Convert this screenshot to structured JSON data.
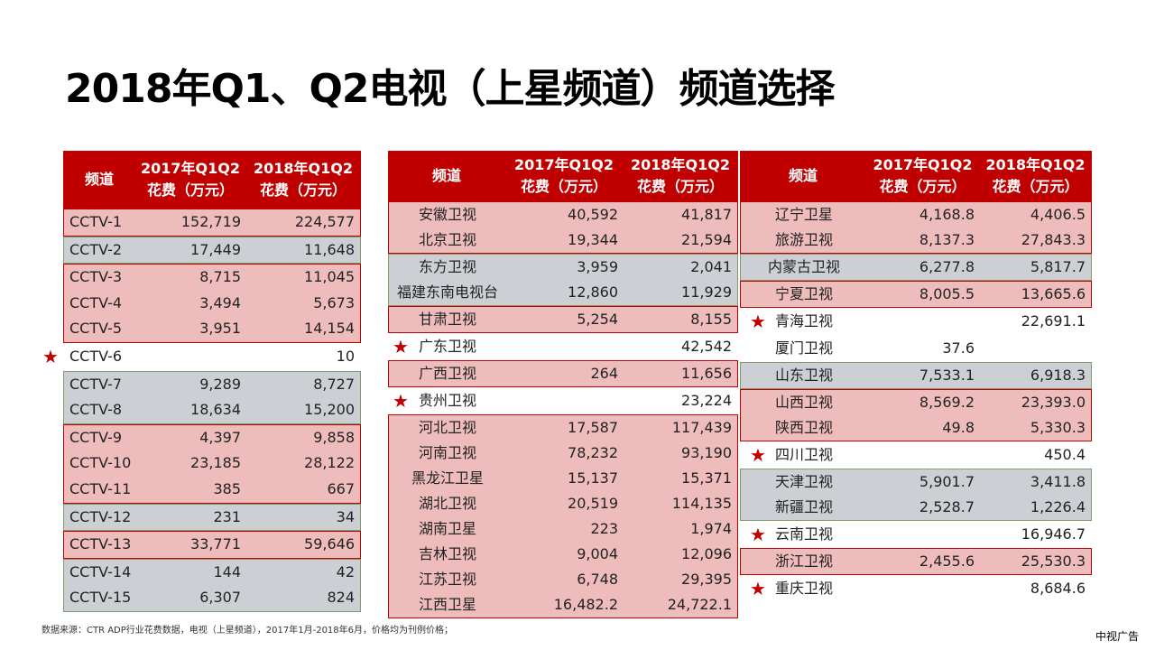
{
  "title": "2018年Q1、Q2电视（上星频道）频道选择",
  "header": {
    "channel": "频道",
    "col2017_line1": "2017年Q1Q2",
    "col2017_line2": "花费（万元）",
    "col2018_line1": "2018年Q1Q2",
    "col2018_line2": "花费（万元）"
  },
  "colors": {
    "header": "#c00000",
    "pink": "#efbcbc",
    "gray": "#ccd0d5",
    "star": "#c00000"
  },
  "tables": [
    {
      "rows": [
        {
          "name": "CCTV-1",
          "v2017": "152,719",
          "v2018": "224,577",
          "type": "red"
        },
        {
          "name": "CCTV-2",
          "v2017": "17,449",
          "v2018": "11,648",
          "type": "gray"
        },
        {
          "name": "CCTV-3",
          "v2017": "8,715",
          "v2018": "11,045",
          "type": "red"
        },
        {
          "name": "CCTV-4",
          "v2017": "3,494",
          "v2018": "5,673",
          "type": "red"
        },
        {
          "name": "CCTV-5",
          "v2017": "3,951",
          "v2018": "14,154",
          "type": "red"
        },
        {
          "name": "CCTV-6",
          "v2017": "",
          "v2018": "10",
          "type": "star"
        },
        {
          "name": "CCTV-7",
          "v2017": "9,289",
          "v2018": "8,727",
          "type": "gray"
        },
        {
          "name": "CCTV-8",
          "v2017": "18,634",
          "v2018": "15,200",
          "type": "gray"
        },
        {
          "name": "CCTV-9",
          "v2017": "4,397",
          "v2018": "9,858",
          "type": "red"
        },
        {
          "name": "CCTV-10",
          "v2017": "23,185",
          "v2018": "28,122",
          "type": "red"
        },
        {
          "name": "CCTV-11",
          "v2017": "385",
          "v2018": "667",
          "type": "red"
        },
        {
          "name": "CCTV-12",
          "v2017": "231",
          "v2018": "34",
          "type": "gray"
        },
        {
          "name": "CCTV-13",
          "v2017": "33,771",
          "v2018": "59,646",
          "type": "red"
        },
        {
          "name": "CCTV-14",
          "v2017": "144",
          "v2018": "42",
          "type": "gray"
        },
        {
          "name": "CCTV-15",
          "v2017": "6,307",
          "v2018": "824",
          "type": "gray"
        }
      ]
    },
    {
      "rows": [
        {
          "name": "安徽卫视",
          "v2017": "40,592",
          "v2018": "41,817",
          "type": "red"
        },
        {
          "name": "北京卫视",
          "v2017": "19,344",
          "v2018": "21,594",
          "type": "red"
        },
        {
          "name": "东方卫视",
          "v2017": "3,959",
          "v2018": "2,041",
          "type": "gray"
        },
        {
          "name": "福建东南电视台",
          "v2017": "12,860",
          "v2018": "11,929",
          "type": "gray"
        },
        {
          "name": "甘肃卫视",
          "v2017": "5,254",
          "v2018": "8,155",
          "type": "red"
        },
        {
          "name": "广东卫视",
          "v2017": "",
          "v2018": "42,542",
          "type": "star"
        },
        {
          "name": "广西卫视",
          "v2017": "264",
          "v2018": "11,656",
          "type": "red"
        },
        {
          "name": "贵州卫视",
          "v2017": "",
          "v2018": "23,224",
          "type": "star"
        },
        {
          "name": "河北卫视",
          "v2017": "17,587",
          "v2018": "117,439",
          "type": "red"
        },
        {
          "name": "河南卫视",
          "v2017": "78,232",
          "v2018": "93,190",
          "type": "red"
        },
        {
          "name": "黑龙江卫星",
          "v2017": "15,137",
          "v2018": "15,371",
          "type": "red"
        },
        {
          "name": "湖北卫视",
          "v2017": "20,519",
          "v2018": "114,135",
          "type": "red"
        },
        {
          "name": "湖南卫星",
          "v2017": "223",
          "v2018": "1,974",
          "type": "red"
        },
        {
          "name": "吉林卫视",
          "v2017": "9,004",
          "v2018": "12,096",
          "type": "red"
        },
        {
          "name": "江苏卫视",
          "v2017": "6,748",
          "v2018": "29,395",
          "type": "red"
        },
        {
          "name": "江西卫星",
          "v2017": "16,482.2",
          "v2018": "24,722.1",
          "type": "red"
        }
      ]
    },
    {
      "rows": [
        {
          "name": "辽宁卫星",
          "v2017": "4,168.8",
          "v2018": "4,406.5",
          "type": "red"
        },
        {
          "name": "旅游卫视",
          "v2017": "8,137.3",
          "v2018": "27,843.3",
          "type": "red"
        },
        {
          "name": "内蒙古卫视",
          "v2017": "6,277.8",
          "v2018": "5,817.7",
          "type": "gray"
        },
        {
          "name": "宁夏卫视",
          "v2017": "8,005.5",
          "v2018": "13,665.6",
          "type": "red"
        },
        {
          "name": "青海卫视",
          "v2017": "",
          "v2018": "22,691.1",
          "type": "star"
        },
        {
          "name": "厦门卫视",
          "v2017": "37.6",
          "v2018": "",
          "type": "plain"
        },
        {
          "name": "山东卫视",
          "v2017": "7,533.1",
          "v2018": "6,918.3",
          "type": "gray"
        },
        {
          "name": "山西卫视",
          "v2017": "8,569.2",
          "v2018": "23,393.0",
          "type": "red"
        },
        {
          "name": "陕西卫视",
          "v2017": "49.8",
          "v2018": "5,330.3",
          "type": "red"
        },
        {
          "name": "四川卫视",
          "v2017": "",
          "v2018": "450.4",
          "type": "star"
        },
        {
          "name": "天津卫视",
          "v2017": "5,901.7",
          "v2018": "3,411.8",
          "type": "gray"
        },
        {
          "name": "新疆卫视",
          "v2017": "2,528.7",
          "v2018": "1,226.4",
          "type": "gray"
        },
        {
          "name": "云南卫视",
          "v2017": "",
          "v2018": "16,946.7",
          "type": "star"
        },
        {
          "name": "浙江卫视",
          "v2017": "2,455.6",
          "v2018": "25,530.3",
          "type": "red"
        },
        {
          "name": "重庆卫视",
          "v2017": "",
          "v2018": "8,684.6",
          "type": "star"
        }
      ]
    }
  ],
  "footer": {
    "source": "数据来源：CTR ADP行业花费数据，电视（上星频道），2017年1月-2018年6月，价格均为刊例价格；",
    "brand": "中视广告"
  }
}
